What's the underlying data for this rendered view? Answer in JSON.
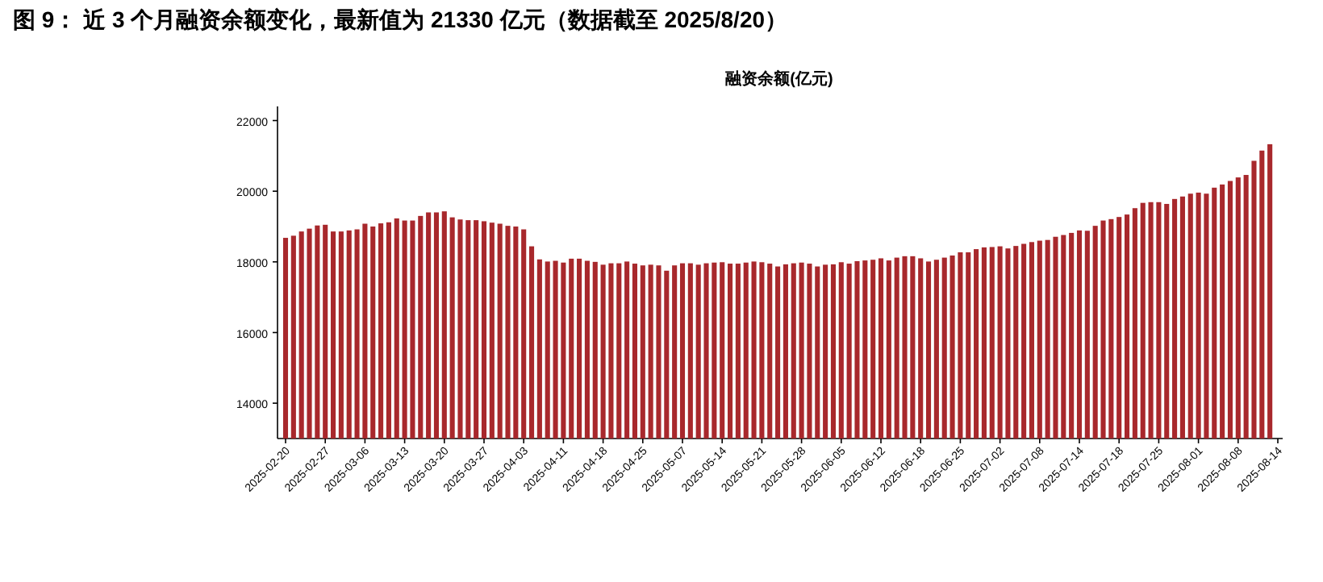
{
  "chart_data": {
    "type": "bar",
    "title": "图 9：  近 3 个月融资余额变化，最新值为 21330 亿元（数据截至 2025/8/20）",
    "subtitle": "融资余额(亿元)",
    "categories": [
      "2025-02-20",
      null,
      null,
      null,
      null,
      "2025-02-27",
      null,
      null,
      null,
      null,
      "2025-03-06",
      null,
      null,
      null,
      null,
      "2025-03-13",
      null,
      null,
      null,
      null,
      "2025-03-20",
      null,
      null,
      null,
      null,
      "2025-03-27",
      null,
      null,
      null,
      null,
      "2025-04-03",
      null,
      null,
      null,
      null,
      "2025-04-11",
      null,
      null,
      null,
      null,
      "2025-04-18",
      null,
      null,
      null,
      null,
      "2025-04-25",
      null,
      null,
      null,
      null,
      "2025-05-07",
      null,
      null,
      null,
      null,
      "2025-05-14",
      null,
      null,
      null,
      null,
      "2025-05-21",
      null,
      null,
      null,
      null,
      "2025-05-28",
      null,
      null,
      null,
      null,
      "2025-06-05",
      null,
      null,
      null,
      null,
      "2025-06-12",
      null,
      null,
      null,
      null,
      "2025-06-18",
      null,
      null,
      null,
      null,
      "2025-06-25",
      null,
      null,
      null,
      null,
      "2025-07-02",
      null,
      null,
      null,
      null,
      "2025-07-08",
      null,
      null,
      null,
      null,
      "2025-07-14",
      null,
      null,
      null,
      null,
      "2025-07-18",
      null,
      null,
      null,
      null,
      "2025-07-25",
      null,
      null,
      null,
      null,
      "2025-08-01",
      null,
      null,
      null,
      null,
      "2025-08-08",
      null,
      null,
      null,
      null,
      "2025-08-14"
    ],
    "values": [
      18680,
      18740,
      18860,
      18940,
      19030,
      19050,
      18860,
      18860,
      18890,
      18920,
      19080,
      19000,
      19090,
      19120,
      19230,
      19170,
      19170,
      19300,
      19400,
      19400,
      19430,
      19260,
      19200,
      19180,
      19180,
      19150,
      19110,
      19080,
      19020,
      19000,
      18920,
      18440,
      18070,
      18010,
      18030,
      17980,
      18090,
      18090,
      18030,
      18000,
      17920,
      17960,
      17960,
      18010,
      17950,
      17900,
      17920,
      17900,
      17750,
      17900,
      17960,
      17960,
      17920,
      17960,
      17980,
      17990,
      17950,
      17950,
      17980,
      18010,
      17990,
      17950,
      17870,
      17930,
      17960,
      17980,
      17950,
      17870,
      17920,
      17930,
      17990,
      17950,
      18020,
      18040,
      18060,
      18100,
      18040,
      18120,
      18160,
      18160,
      18100,
      18010,
      18060,
      18120,
      18180,
      18270,
      18270,
      18360,
      18410,
      18420,
      18440,
      18380,
      18450,
      18510,
      18560,
      18600,
      18620,
      18710,
      18760,
      18820,
      18890,
      18880,
      19020,
      19170,
      19210,
      19270,
      19340,
      19520,
      19670,
      19690,
      19690,
      19640,
      19780,
      19850,
      19930,
      19960,
      19930,
      20100,
      20190,
      20290,
      20390,
      20460,
      20860,
      21150,
      21330,
      null
    ],
    "color": "#a8282c",
    "ylim": [
      13000,
      22400
    ],
    "yticks": [
      14000,
      16000,
      18000,
      20000,
      22000
    ]
  }
}
